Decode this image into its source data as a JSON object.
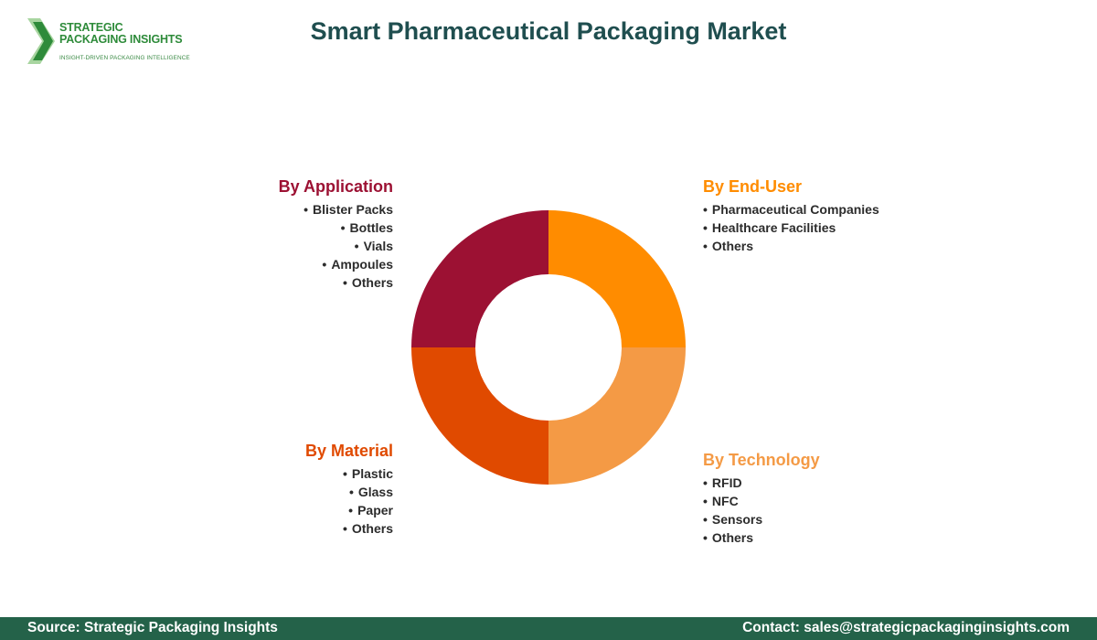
{
  "logo": {
    "line1": "STRATEGIC",
    "line2": "PACKAGING INSIGHTS",
    "tagline": "INSIGHT-DRIVEN PACKAGING INTELLIGENCE",
    "colors": {
      "mark_dark": "#2e8b3a",
      "mark_light": "#a8d5a0"
    }
  },
  "title": "Smart Pharmaceutical Packaging Market",
  "segments": [
    {
      "key": "application",
      "title": "By Application",
      "color": "#9c1133",
      "items": [
        "Blister Packs",
        "Bottles",
        "Vials",
        "Ampoules",
        "Others"
      ]
    },
    {
      "key": "end_user",
      "title": "By End-User",
      "color": "#ff8c00",
      "items": [
        "Pharmaceutical Companies",
        "Healthcare Facilities",
        "Others"
      ]
    },
    {
      "key": "technology",
      "title": "By Technology",
      "color": "#f49a45",
      "items": [
        "RFID",
        "NFC",
        "Sensors",
        "Others"
      ]
    },
    {
      "key": "material",
      "title": "By Material",
      "color": "#e04a00",
      "items": [
        "Plastic",
        "Glass",
        "Paper",
        "Others"
      ]
    }
  ],
  "footer": {
    "source": "Source: Strategic Packaging Insights",
    "contact": "Contact: sales@strategicpackaginginsights.com"
  }
}
